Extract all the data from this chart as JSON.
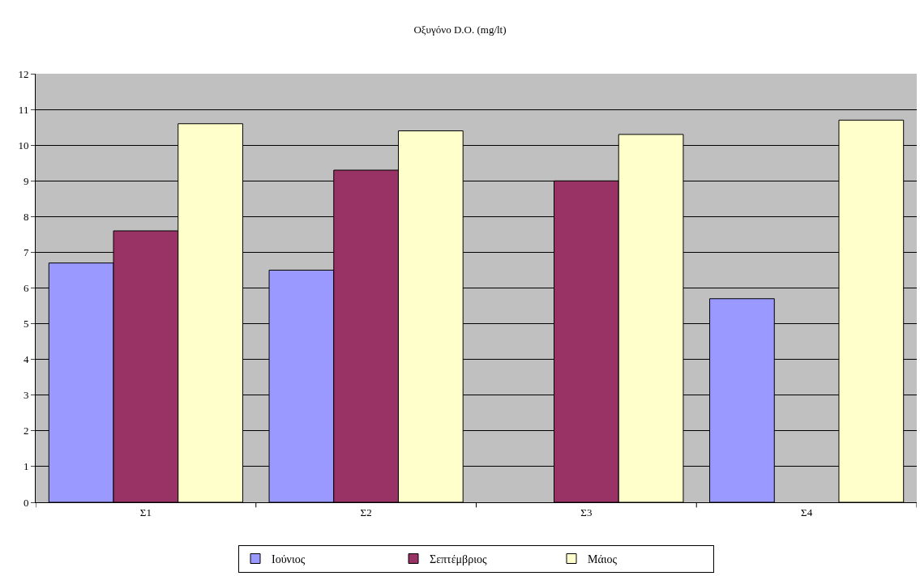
{
  "chart_data": {
    "type": "bar",
    "title": "Οξυγόνο D.O. (mg/lt)",
    "categories": [
      "Σ1",
      "Σ2",
      "Σ3",
      "Σ4"
    ],
    "series": [
      {
        "name": "Ιούνιος",
        "color": "#9999ff",
        "values": [
          6.7,
          6.5,
          null,
          5.7
        ]
      },
      {
        "name": "Σεπτέμβριος",
        "color": "#993366",
        "values": [
          7.6,
          9.3,
          9.0,
          null
        ]
      },
      {
        "name": "Μάιος",
        "color": "#ffffcc",
        "values": [
          10.6,
          10.4,
          10.3,
          10.7
        ]
      }
    ],
    "ylim": [
      0,
      12
    ],
    "yticks": [
      0,
      1,
      2,
      3,
      4,
      5,
      6,
      7,
      8,
      9,
      10,
      11,
      12
    ],
    "grid": "y",
    "legend": "bottom"
  }
}
